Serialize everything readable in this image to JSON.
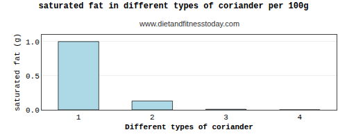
{
  "chart_data": {
    "type": "bar",
    "title": "saturated fat in different types of coriander per 100g",
    "subtitle": "www.dietandfitnesstoday.com",
    "xlabel": "Different types of coriander",
    "ylabel": "saturated fat (g)",
    "x": [
      1,
      2,
      3,
      4
    ],
    "values": [
      1.0,
      0.13,
      0.008,
      0.0
    ],
    "color": "#ADD8E6",
    "xlim": [
      0.5,
      4.5
    ],
    "xticks": [
      1,
      2,
      3,
      4
    ],
    "ylim": [
      0,
      1.1
    ],
    "yticks": [
      {
        "value": 0,
        "label": "0.0"
      },
      0.5,
      {
        "value": 1,
        "label": "1.0"
      }
    ],
    "grid": true
  }
}
